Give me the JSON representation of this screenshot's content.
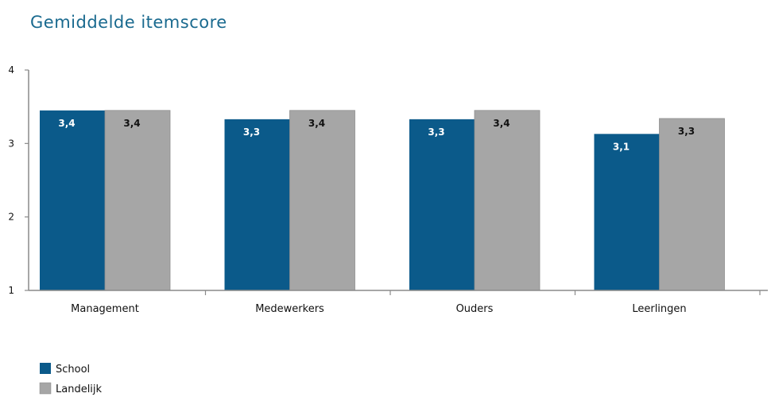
{
  "chart_data": {
    "type": "bar",
    "title": "Gemiddelde itemscore",
    "categories": [
      "Management",
      "Medewerkers",
      "Ouders",
      "Leerlingen"
    ],
    "series": [
      {
        "name": "School",
        "color": "#0b5a8a",
        "values": [
          3.45,
          3.33,
          3.33,
          3.13
        ],
        "labels": [
          "3,4",
          "3,3",
          "3,3",
          "3,1"
        ]
      },
      {
        "name": "Landelijk",
        "color": "#a6a6a6",
        "values": [
          3.45,
          3.45,
          3.45,
          3.34
        ],
        "labels": [
          "3,4",
          "3,4",
          "3,4",
          "3,3"
        ]
      }
    ],
    "ylim": [
      1,
      4
    ],
    "yticks": [
      "1",
      "2",
      "3",
      "4"
    ],
    "xlabel": "",
    "ylabel": "",
    "grid": false,
    "legend": "bottom-left"
  }
}
